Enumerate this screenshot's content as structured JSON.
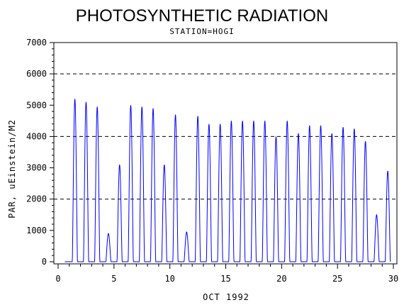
{
  "chart_data": {
    "type": "line",
    "title": "PHOTOSYNTHETIC RADIATION",
    "subtitle": "STATION=HOGI",
    "xlabel": "OCT 1992",
    "ylabel": "PAR, uEinstein/M2",
    "xlim": [
      0,
      30
    ],
    "ylim": [
      0,
      7000
    ],
    "x_ticks": [
      0,
      5,
      10,
      15,
      20,
      25,
      30
    ],
    "y_ticks": [
      0,
      1000,
      2000,
      3000,
      4000,
      5000,
      6000,
      7000
    ],
    "reference_lines": [
      2000,
      4000,
      6000
    ],
    "grid": false,
    "series_color": "#0000ff",
    "daily_peaks": [
      {
        "day": 1,
        "peak": 5200
      },
      {
        "day": 2,
        "peak": 5100
      },
      {
        "day": 3,
        "peak": 4950
      },
      {
        "day": 4,
        "peak": 900
      },
      {
        "day": 5,
        "peak": 3100
      },
      {
        "day": 6,
        "peak": 5000
      },
      {
        "day": 7,
        "peak": 4950
      },
      {
        "day": 8,
        "peak": 4900
      },
      {
        "day": 9,
        "peak": 3100
      },
      {
        "day": 10,
        "peak": 4700
      },
      {
        "day": 11,
        "peak": 950
      },
      {
        "day": 12,
        "peak": 4650
      },
      {
        "day": 13,
        "peak": 4400
      },
      {
        "day": 14,
        "peak": 4400
      },
      {
        "day": 15,
        "peak": 4500
      },
      {
        "day": 16,
        "peak": 4500
      },
      {
        "day": 17,
        "peak": 4500
      },
      {
        "day": 18,
        "peak": 4500
      },
      {
        "day": 19,
        "peak": 4000
      },
      {
        "day": 20,
        "peak": 4500
      },
      {
        "day": 21,
        "peak": 4100
      },
      {
        "day": 22,
        "peak": 4350
      },
      {
        "day": 23,
        "peak": 4350
      },
      {
        "day": 24,
        "peak": 4100
      },
      {
        "day": 25,
        "peak": 4300
      },
      {
        "day": 26,
        "peak": 4250
      },
      {
        "day": 27,
        "peak": 3850
      },
      {
        "day": 28,
        "peak": 1500
      },
      {
        "day": 29,
        "peak": 2900
      }
    ]
  }
}
